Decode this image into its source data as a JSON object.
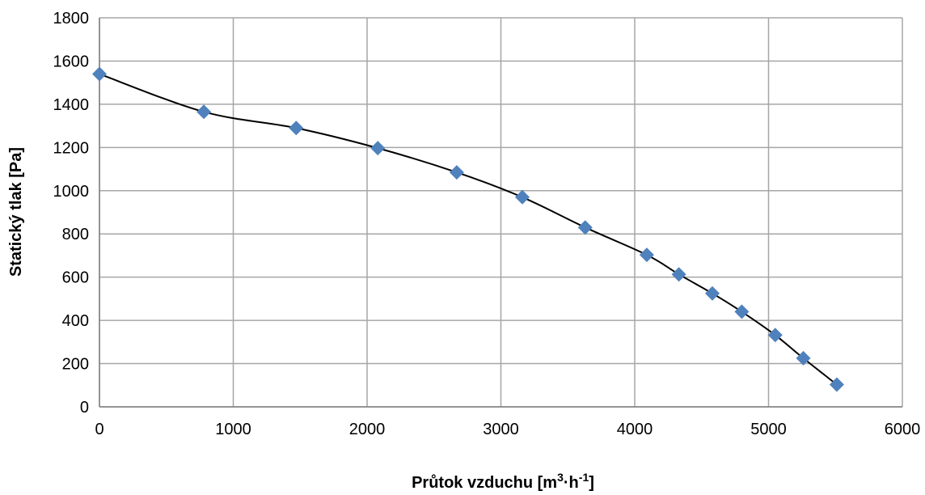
{
  "chart_data": {
    "type": "scatter",
    "title": "",
    "xlabel": "Průtok vzduchu [m",
    "xlabel_sup1": "3",
    "xlabel_mid": "·h",
    "xlabel_sup2": "-1",
    "xlabel_end": "]",
    "ylabel": "Statický tlak [Pa]",
    "xlim": [
      0,
      6000
    ],
    "ylim": [
      0,
      1800
    ],
    "x_ticks": [
      0,
      1000,
      2000,
      3000,
      4000,
      5000,
      6000
    ],
    "y_ticks": [
      0,
      200,
      400,
      600,
      800,
      1000,
      1200,
      1400,
      1600,
      1800
    ],
    "grid": true,
    "marker_color": "#4F81BD",
    "line_color": "#000000",
    "grid_color": "#A6A6A6",
    "series": [
      {
        "marker": "diamond",
        "trendline": "polynomial",
        "x": [
          0,
          780,
          1470,
          2080,
          2670,
          3160,
          3630,
          4090,
          4330,
          4580,
          4800,
          5050,
          5260,
          5510
        ],
        "y": [
          1540,
          1365,
          1290,
          1197,
          1085,
          970,
          830,
          703,
          613,
          525,
          440,
          332,
          225,
          103
        ]
      }
    ]
  }
}
